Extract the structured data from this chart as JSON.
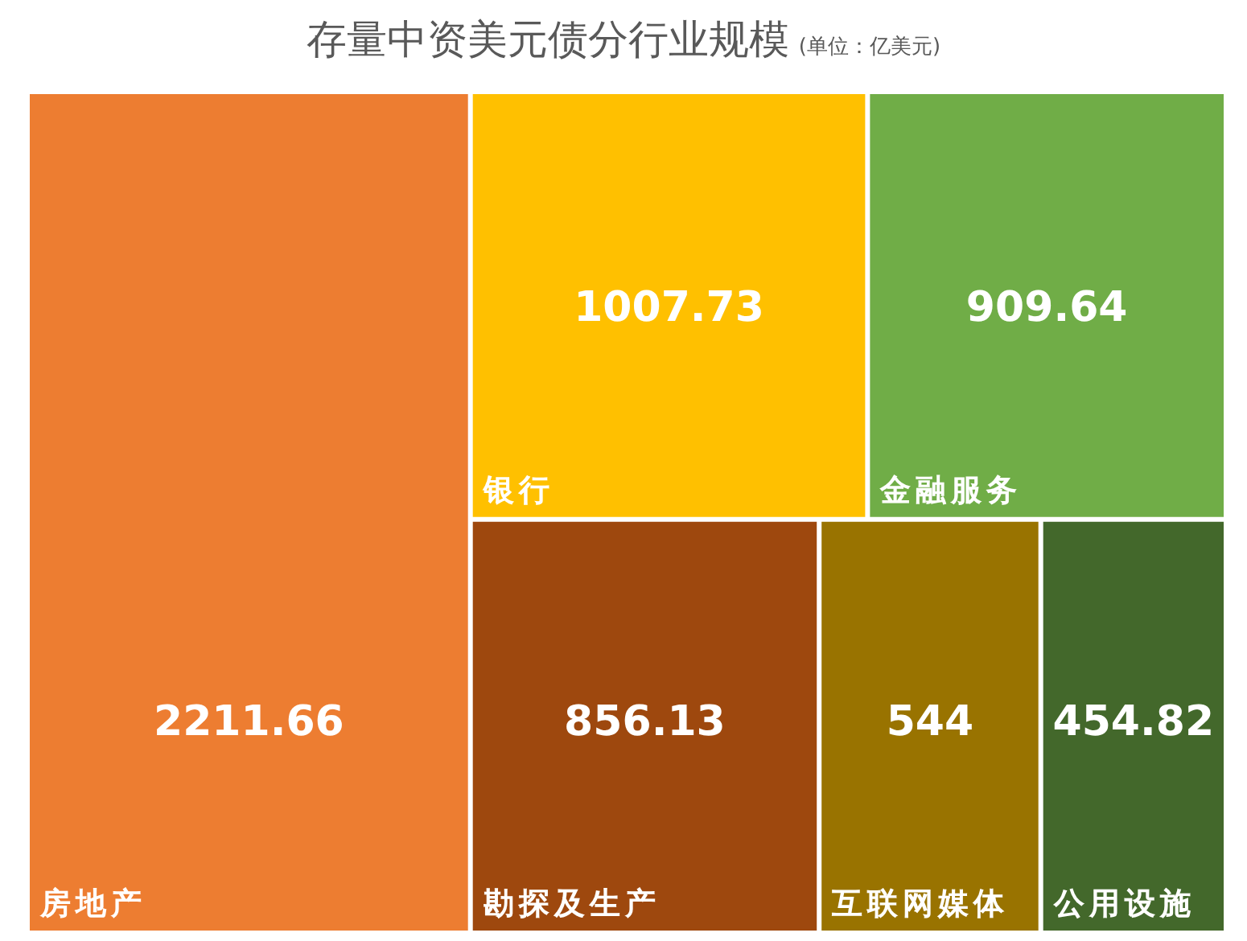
{
  "chart_data": {
    "type": "other",
    "title": "存量中资美元债分行业规模",
    "subtitle": "(单位：亿美元)",
    "categories": [
      "房地产",
      "银行",
      "金融服务",
      "勘探及生产",
      "互联网媒体",
      "公用设施"
    ],
    "values": [
      2211.66,
      1007.73,
      909.64,
      856.13,
      544,
      454.82
    ],
    "colors": [
      "#ed7d31",
      "#ffc000",
      "#70ad47",
      "#9e480e",
      "#997300",
      "#43682b"
    ],
    "data_labels": true
  }
}
